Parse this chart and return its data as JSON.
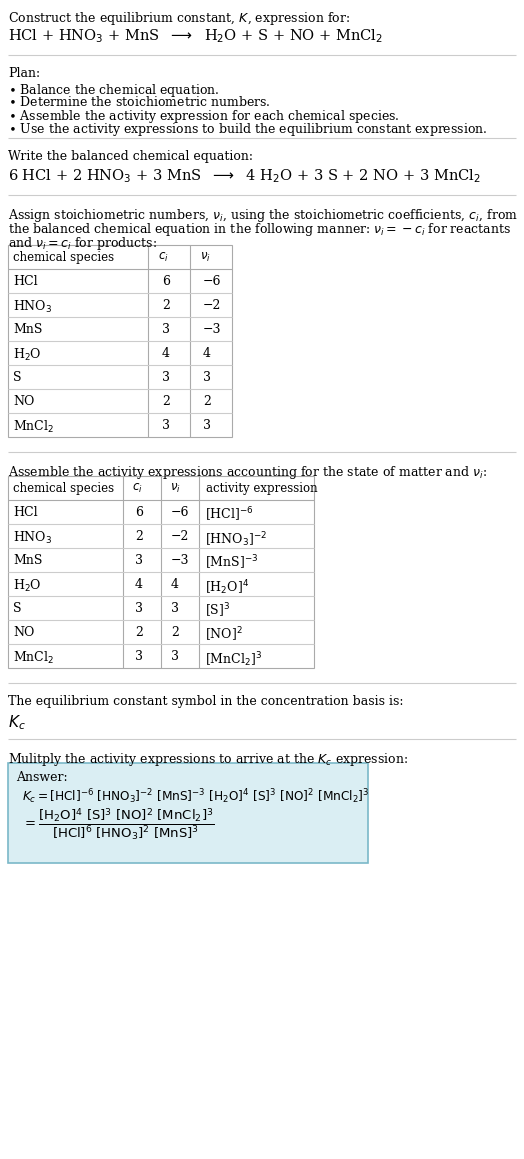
{
  "bg_color": "#ffffff",
  "table_line_color": "#aaaaaa",
  "answer_box_color": "#daeef3",
  "answer_box_edge": "#7ab8c8",
  "text_color": "#000000",
  "font_size": 9.0,
  "stoich_table": {
    "rows": [
      [
        "HCl",
        "6",
        "−6"
      ],
      [
        "HNO$_3$",
        "2",
        "−2"
      ],
      [
        "MnS",
        "3",
        "−3"
      ],
      [
        "H$_2$O",
        "4",
        "4"
      ],
      [
        "S",
        "3",
        "3"
      ],
      [
        "NO",
        "2",
        "2"
      ],
      [
        "MnCl$_2$",
        "3",
        "3"
      ]
    ]
  },
  "activity_table": {
    "rows": [
      [
        "HCl",
        "6",
        "−6",
        "[HCl]$^{-6}$"
      ],
      [
        "HNO$_3$",
        "2",
        "−2",
        "[HNO$_3$]$^{-2}$"
      ],
      [
        "MnS",
        "3",
        "−3",
        "[MnS]$^{-3}$"
      ],
      [
        "H$_2$O",
        "4",
        "4",
        "[H$_2$O]$^{4}$"
      ],
      [
        "S",
        "3",
        "3",
        "[S]$^{3}$"
      ],
      [
        "NO",
        "2",
        "2",
        "[NO]$^{2}$"
      ],
      [
        "MnCl$_2$",
        "3",
        "3",
        "[MnCl$_2$]$^{3}$"
      ]
    ]
  }
}
